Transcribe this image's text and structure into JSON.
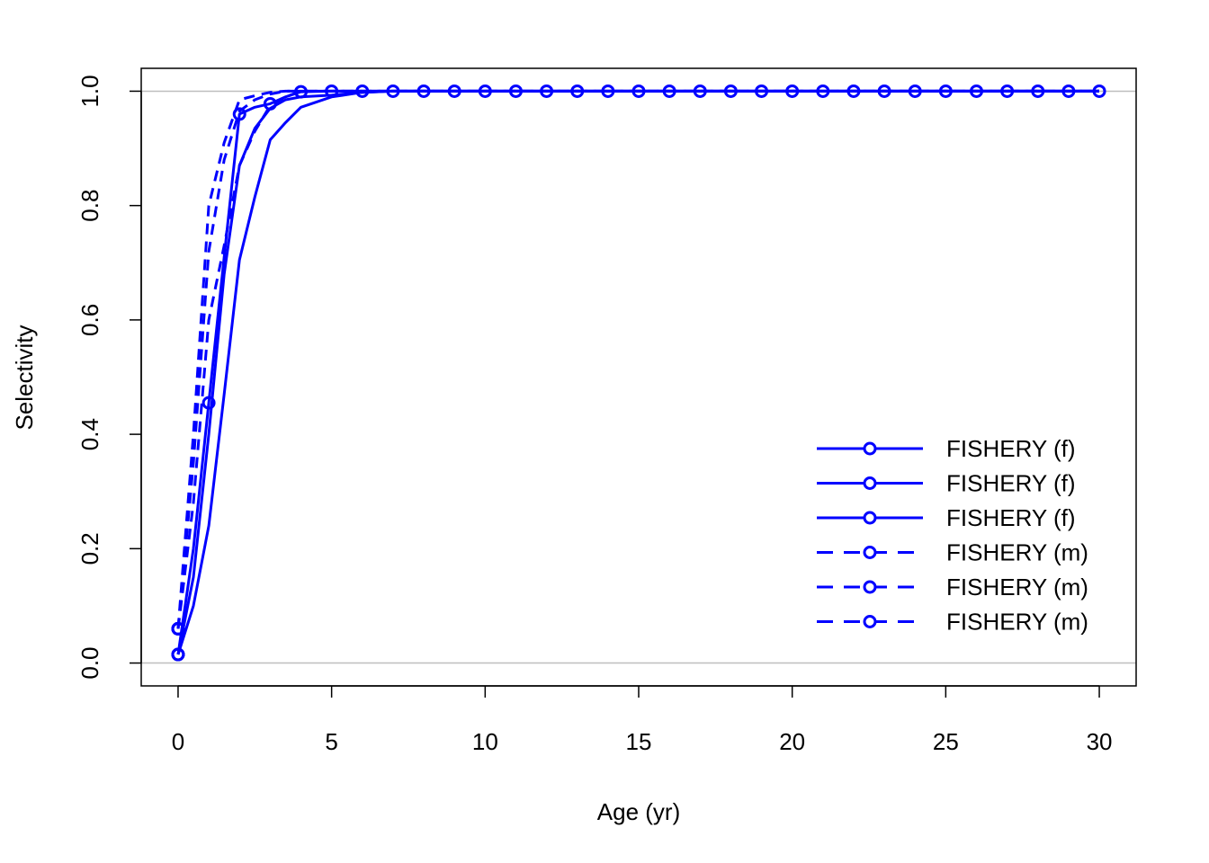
{
  "chart_data": {
    "type": "line",
    "title": "",
    "xlabel": "Age (yr)",
    "ylabel": "Selectivity",
    "xlim": [
      -1.2,
      31.2
    ],
    "ylim": [
      -0.04,
      1.04
    ],
    "xticks": [
      0,
      5,
      10,
      15,
      20,
      25,
      30
    ],
    "xtick_labels": [
      "0",
      "5",
      "10",
      "15",
      "20",
      "25",
      "30"
    ],
    "yticks": [
      0.0,
      0.2,
      0.4,
      0.6,
      0.8,
      1.0
    ],
    "ytick_labels": [
      "0.0",
      "0.2",
      "0.4",
      "0.6",
      "0.8",
      "1.0"
    ],
    "reference_lines": [
      0,
      1
    ],
    "reference_line_color": "#bebebe",
    "series_color": "#0000ff",
    "grid": false,
    "legend_position": "bottom-right",
    "x": [
      0,
      0.5,
      1,
      1.5,
      2,
      2.5,
      3,
      3.5,
      4,
      5,
      6,
      7,
      8,
      9,
      10,
      11,
      12,
      13,
      14,
      15,
      16,
      17,
      18,
      19,
      20,
      21,
      22,
      23,
      24,
      25,
      26,
      27,
      28,
      29,
      30
    ],
    "series": [
      {
        "name": "FISHERY (f)",
        "linestyle": "solid",
        "marker_step": 1,
        "values": [
          0.015,
          0.2,
          0.455,
          0.71,
          0.96,
          0.972,
          0.978,
          0.99,
          0.999,
          1,
          1,
          1,
          1,
          1,
          1,
          1,
          1,
          1,
          1,
          1,
          1,
          1,
          1,
          1,
          1,
          1,
          1,
          1,
          1,
          1,
          1,
          1,
          1,
          1,
          1
        ]
      },
      {
        "name": "FISHERY (f)",
        "linestyle": "solid",
        "marker_step": 0,
        "values": [
          0.015,
          0.15,
          0.4,
          0.68,
          0.87,
          0.935,
          0.97,
          0.985,
          0.99,
          0.993,
          0.998,
          1,
          1,
          1,
          1,
          1,
          1,
          1,
          1,
          1,
          1,
          1,
          1,
          1,
          1,
          1,
          1,
          1,
          1,
          1,
          1,
          1,
          1,
          1,
          1
        ]
      },
      {
        "name": "FISHERY (f)",
        "linestyle": "solid",
        "marker_step": 0,
        "values": [
          0.015,
          0.1,
          0.24,
          0.47,
          0.705,
          0.815,
          0.915,
          0.945,
          0.972,
          0.99,
          0.998,
          1,
          1,
          1,
          1,
          1,
          1,
          1,
          1,
          1,
          1,
          1,
          1,
          1,
          1,
          1,
          1,
          1,
          1,
          1,
          1,
          1,
          1,
          1,
          1
        ]
      },
      {
        "name": "FISHERY (m)",
        "linestyle": "dashed",
        "marker_step": 0,
        "values": [
          0.06,
          0.4,
          0.8,
          0.91,
          0.985,
          0.992,
          0.998,
          1,
          1,
          1,
          1,
          1,
          1,
          1,
          1,
          1,
          1,
          1,
          1,
          1,
          1,
          1,
          1,
          1,
          1,
          1,
          1,
          1,
          1,
          1,
          1,
          1,
          1,
          1,
          1
        ]
      },
      {
        "name": "FISHERY (m)",
        "linestyle": "dashed",
        "marker_step": 0,
        "values": [
          0.06,
          0.35,
          0.72,
          0.88,
          0.965,
          0.985,
          0.995,
          1,
          1,
          1,
          1,
          1,
          1,
          1,
          1,
          1,
          1,
          1,
          1,
          1,
          1,
          1,
          1,
          1,
          1,
          1,
          1,
          1,
          1,
          1,
          1,
          1,
          1,
          1,
          1
        ]
      },
      {
        "name": "FISHERY (m)",
        "linestyle": "dashed",
        "marker_step": 0,
        "values": [
          0.06,
          0.28,
          0.6,
          0.73,
          0.87,
          0.93,
          0.975,
          0.99,
          1,
          1,
          1,
          1,
          1,
          1,
          1,
          1,
          1,
          1,
          1,
          1,
          1,
          1,
          1,
          1,
          1,
          1,
          1,
          1,
          1,
          1,
          1,
          1,
          1,
          1,
          1
        ]
      }
    ]
  }
}
